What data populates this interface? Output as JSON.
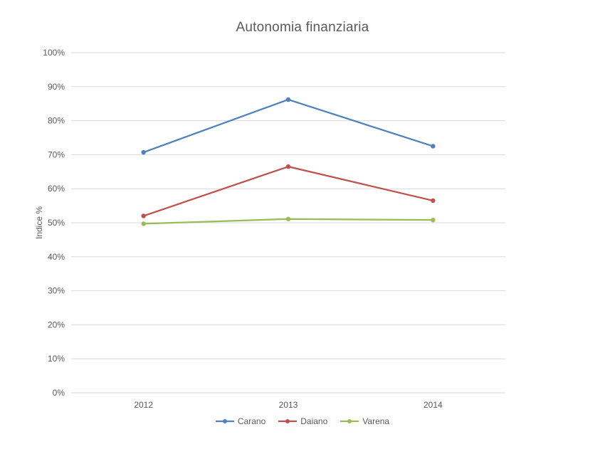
{
  "chart": {
    "title": "Autonomia finanziaria",
    "ylabel": "Indice %"
  },
  "chart_data": {
    "type": "line",
    "title": "Autonomia finanziaria",
    "categories": [
      "2012",
      "2013",
      "2014"
    ],
    "series": [
      {
        "name": "Carano",
        "color": "#4f81bd",
        "values": [
          70.7,
          86.2,
          72.5
        ]
      },
      {
        "name": "Daiano",
        "color": "#c0504d",
        "values": [
          52.0,
          66.5,
          56.5
        ]
      },
      {
        "name": "Varena",
        "color": "#9bbb59",
        "values": [
          49.7,
          51.1,
          50.8
        ]
      }
    ],
    "xlabel": "",
    "ylabel": "Indice %",
    "ylim": [
      0,
      100
    ],
    "ytick_step": 10,
    "ytick_suffix": "%",
    "grid": true,
    "legend_position": "bottom",
    "colors": {
      "gridline": "#d9d9d9",
      "text": "#595959",
      "background": "#ffffff"
    }
  }
}
